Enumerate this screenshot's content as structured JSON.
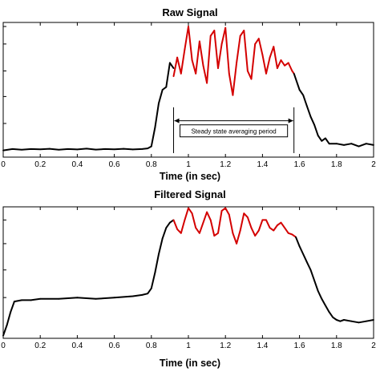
{
  "chart_data": [
    {
      "type": "line",
      "title": "Raw Signal",
      "xlabel": "Time (in sec)",
      "ylabel": "",
      "xlim": [
        0,
        2
      ],
      "ylim": [
        0,
        1
      ],
      "xticks": [
        0,
        0.2,
        0.4,
        0.6,
        0.8,
        1,
        1.2,
        1.4,
        1.6,
        1.8,
        2
      ],
      "xtick_labels": [
        "0",
        "0.2",
        "0.4",
        "0.6",
        "0.8",
        "1",
        "1.2",
        "1.4",
        "1.6",
        "1.8",
        "2"
      ],
      "yticks": [
        0.25,
        0.45,
        0.64,
        0.84,
        0.97
      ],
      "colors": {
        "signal": "#000000",
        "steady_state": "#d40000"
      },
      "series": [
        {
          "color": "#000000",
          "x": [
            0,
            0.05,
            0.1,
            0.15,
            0.2,
            0.25,
            0.3,
            0.35,
            0.4,
            0.45,
            0.5,
            0.55,
            0.6,
            0.65,
            0.7,
            0.75,
            0.78,
            0.8,
            0.82,
            0.84,
            0.86,
            0.88,
            0.9,
            0.92
          ],
          "y": [
            0.05,
            0.06,
            0.055,
            0.06,
            0.058,
            0.062,
            0.055,
            0.06,
            0.057,
            0.063,
            0.056,
            0.06,
            0.058,
            0.062,
            0.057,
            0.06,
            0.065,
            0.08,
            0.22,
            0.4,
            0.5,
            0.52,
            0.7,
            0.66
          ]
        },
        {
          "color": "#d40000",
          "x": [
            0.92,
            0.94,
            0.96,
            0.98,
            1.0,
            1.02,
            1.04,
            1.06,
            1.08,
            1.1,
            1.12,
            1.14,
            1.16,
            1.18,
            1.2,
            1.22,
            1.24,
            1.26,
            1.28,
            1.3,
            1.32,
            1.34,
            1.36,
            1.38,
            1.4,
            1.42,
            1.44,
            1.46,
            1.48,
            1.5,
            1.52,
            1.54,
            1.56,
            1.57
          ],
          "y": [
            0.6,
            0.74,
            0.62,
            0.8,
            0.97,
            0.72,
            0.62,
            0.86,
            0.68,
            0.55,
            0.9,
            0.94,
            0.66,
            0.84,
            0.96,
            0.62,
            0.46,
            0.7,
            0.9,
            0.94,
            0.64,
            0.58,
            0.84,
            0.88,
            0.76,
            0.62,
            0.74,
            0.82,
            0.66,
            0.72,
            0.68,
            0.7,
            0.64,
            0.62
          ]
        },
        {
          "color": "#000000",
          "x": [
            1.57,
            1.6,
            1.62,
            1.64,
            1.66,
            1.68,
            1.7,
            1.72,
            1.74,
            1.76,
            1.8,
            1.84,
            1.88,
            1.92,
            1.96,
            2.0
          ],
          "y": [
            0.62,
            0.5,
            0.46,
            0.38,
            0.3,
            0.24,
            0.16,
            0.12,
            0.14,
            0.1,
            0.1,
            0.09,
            0.1,
            0.08,
            0.1,
            0.09
          ]
        }
      ],
      "annotation": {
        "text": "Steady state averaging period",
        "x_start": 0.92,
        "x_end": 1.57,
        "y": 0.2
      }
    },
    {
      "type": "line",
      "title": "Filtered Signal",
      "xlabel": "Time (in sec)",
      "ylabel": "",
      "xlim": [
        0,
        2
      ],
      "ylim": [
        0,
        1
      ],
      "xticks": [
        0,
        0.2,
        0.4,
        0.6,
        0.8,
        1,
        1.2,
        1.4,
        1.6,
        1.8,
        2
      ],
      "xtick_labels": [
        "0",
        "0.2",
        "0.4",
        "0.6",
        "0.8",
        "1",
        "1.2",
        "1.4",
        "1.6",
        "1.8",
        "2"
      ],
      "yticks": [
        0.31,
        0.52,
        0.72,
        0.9
      ],
      "colors": {
        "signal": "#000000",
        "steady_state": "#d40000"
      },
      "series": [
        {
          "color": "#000000",
          "x": [
            0,
            0.02,
            0.04,
            0.06,
            0.1,
            0.15,
            0.2,
            0.3,
            0.4,
            0.5,
            0.6,
            0.7,
            0.75,
            0.78,
            0.8,
            0.82,
            0.84,
            0.86,
            0.88,
            0.9,
            0.92
          ],
          "y": [
            0.02,
            0.1,
            0.2,
            0.28,
            0.29,
            0.29,
            0.3,
            0.3,
            0.31,
            0.3,
            0.31,
            0.32,
            0.33,
            0.34,
            0.38,
            0.5,
            0.64,
            0.76,
            0.84,
            0.88,
            0.9
          ]
        },
        {
          "color": "#d40000",
          "x": [
            0.92,
            0.94,
            0.96,
            0.98,
            1.0,
            1.02,
            1.04,
            1.06,
            1.08,
            1.1,
            1.12,
            1.14,
            1.16,
            1.18,
            1.2,
            1.22,
            1.24,
            1.26,
            1.28,
            1.3,
            1.32,
            1.34,
            1.36,
            1.38,
            1.4,
            1.42,
            1.44,
            1.46,
            1.48,
            1.5,
            1.52,
            1.54,
            1.56,
            1.58
          ],
          "y": [
            0.9,
            0.83,
            0.8,
            0.9,
            0.99,
            0.95,
            0.84,
            0.8,
            0.88,
            0.96,
            0.9,
            0.78,
            0.8,
            0.97,
            0.99,
            0.94,
            0.8,
            0.72,
            0.82,
            0.95,
            0.92,
            0.84,
            0.78,
            0.82,
            0.9,
            0.9,
            0.84,
            0.82,
            0.86,
            0.88,
            0.84,
            0.8,
            0.79,
            0.77
          ]
        },
        {
          "color": "#000000",
          "x": [
            1.58,
            1.6,
            1.62,
            1.64,
            1.66,
            1.68,
            1.7,
            1.72,
            1.74,
            1.76,
            1.78,
            1.8,
            1.82,
            1.84,
            1.88,
            1.92,
            1.96,
            2.0
          ],
          "y": [
            0.77,
            0.7,
            0.64,
            0.58,
            0.52,
            0.44,
            0.36,
            0.3,
            0.25,
            0.2,
            0.16,
            0.14,
            0.13,
            0.14,
            0.13,
            0.12,
            0.13,
            0.14
          ]
        }
      ]
    }
  ]
}
